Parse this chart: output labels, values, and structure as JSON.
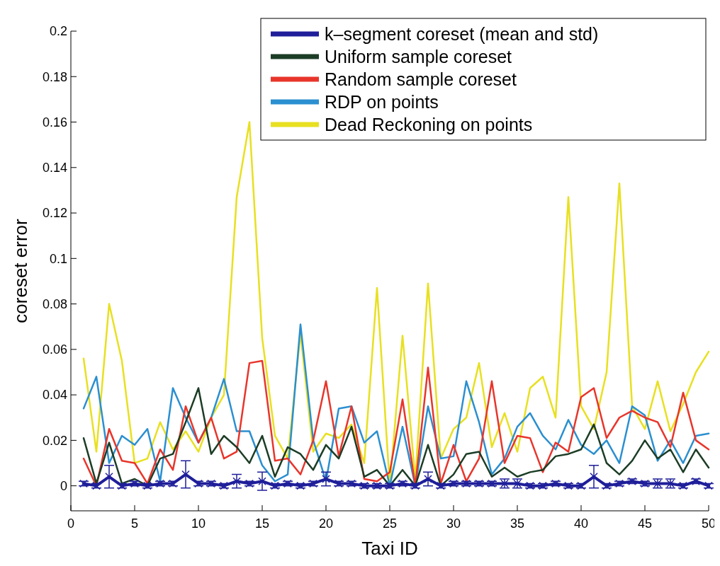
{
  "chart_data": {
    "type": "line",
    "xlabel": "Taxi ID",
    "ylabel": "coreset error",
    "xlim": [
      0,
      50
    ],
    "xticks": [
      0,
      5,
      10,
      15,
      20,
      25,
      30,
      35,
      40,
      45,
      50
    ],
    "ylim": [
      -0.011,
      0.2
    ],
    "yticks": [
      0,
      0.02,
      0.04,
      0.06,
      0.08,
      0.1,
      0.12,
      0.14,
      0.16,
      0.18,
      0.2
    ],
    "legend": "top right",
    "grid": false,
    "x": [
      1,
      2,
      3,
      4,
      5,
      6,
      7,
      8,
      9,
      10,
      11,
      12,
      13,
      14,
      15,
      16,
      17,
      18,
      19,
      20,
      21,
      22,
      23,
      24,
      25,
      26,
      27,
      28,
      29,
      30,
      31,
      32,
      33,
      34,
      35,
      36,
      37,
      38,
      39,
      40,
      41,
      42,
      43,
      44,
      45,
      46,
      47,
      48,
      49,
      50
    ],
    "series": [
      {
        "name": "k–segment coreset (mean and std)",
        "color": "#1f1f9a",
        "marker": "cross",
        "values": [
          0.001,
          0,
          0.004,
          0,
          0.001,
          0,
          0.001,
          0.001,
          0.005,
          0.001,
          0.001,
          0,
          0.002,
          0.001,
          0.002,
          0,
          0.001,
          0,
          0.001,
          0.003,
          0.001,
          0.001,
          0,
          0,
          0,
          0.001,
          0,
          0.003,
          0,
          0.001,
          0.001,
          0.001,
          0.001,
          0.001,
          0.001,
          0,
          0,
          0.001,
          0,
          0,
          0.004,
          0,
          0.001,
          0.002,
          0.001,
          0.001,
          0.001,
          0,
          0.002,
          0
        ],
        "errors": [
          0.001,
          0.001,
          0.005,
          0.001,
          0.001,
          0.001,
          0.001,
          0.001,
          0.006,
          0.001,
          0.001,
          0.001,
          0.003,
          0.001,
          0.004,
          0.001,
          0.001,
          0.001,
          0.001,
          0.003,
          0.001,
          0.001,
          0.001,
          0.001,
          0.001,
          0.001,
          0.001,
          0.003,
          0.001,
          0.001,
          0.001,
          0.001,
          0.001,
          0.002,
          0.002,
          0.001,
          0.001,
          0.001,
          0.001,
          0.001,
          0.005,
          0.001,
          0.001,
          0.001,
          0.001,
          0.002,
          0.002,
          0.001,
          0.001,
          0.001
        ]
      },
      {
        "name": "Uniform sample coreset",
        "color": "#1c3d26",
        "values": [
          0.021,
          0.001,
          0.019,
          0.001,
          0.003,
          0,
          0.012,
          0.014,
          0.028,
          0.043,
          0.014,
          0.022,
          0.017,
          0.01,
          0.022,
          0.004,
          0.017,
          0.014,
          0.007,
          0.018,
          0.012,
          0.026,
          0.004,
          0.007,
          0,
          0.007,
          0,
          0.018,
          0,
          0.005,
          0.014,
          0.015,
          0.004,
          0.008,
          0.004,
          0.006,
          0.007,
          0.013,
          0.014,
          0.016,
          0.027,
          0.01,
          0.005,
          0.011,
          0.02,
          0.012,
          0.016,
          0.006,
          0.016,
          0.008
        ]
      },
      {
        "name": "Random sample coreset",
        "color": "#e8352b",
        "values": [
          0.012,
          0,
          0.025,
          0.011,
          0.01,
          0.001,
          0.016,
          0.007,
          0.035,
          0.019,
          0.03,
          0.012,
          0.015,
          0.054,
          0.055,
          0.011,
          0.012,
          0.005,
          0.02,
          0.046,
          0.013,
          0.035,
          0.003,
          0.002,
          0.006,
          0.038,
          0,
          0.052,
          0.001,
          0.018,
          0.002,
          0.012,
          0.046,
          0.01,
          0.022,
          0.021,
          0.006,
          0.019,
          0.015,
          0.039,
          0.043,
          0.021,
          0.03,
          0.033,
          0.03,
          0.028,
          0.017,
          0.041,
          0.02,
          0.016
        ]
      },
      {
        "name": "RDP on points",
        "color": "#2b8fd0",
        "values": [
          0.034,
          0.048,
          0.01,
          0.022,
          0.018,
          0.025,
          0.002,
          0.043,
          0.03,
          0.019,
          0.03,
          0.047,
          0.024,
          0.024,
          0.009,
          0.002,
          0.005,
          0.071,
          0.02,
          0.002,
          0.034,
          0.035,
          0.019,
          0.024,
          0,
          0.026,
          0,
          0.035,
          0.012,
          0.013,
          0.046,
          0.028,
          0.005,
          0.012,
          0.026,
          0.032,
          0.022,
          0.016,
          0.029,
          0.018,
          0.014,
          0.02,
          0.01,
          0.035,
          0.031,
          0.011,
          0.02,
          0.01,
          0.022,
          0.023
        ]
      },
      {
        "name": "Dead Reckoning on points",
        "color": "#e8e020",
        "values": [
          0.056,
          0.015,
          0.08,
          0.055,
          0.01,
          0.012,
          0.028,
          0.016,
          0.024,
          0.015,
          0.03,
          0.04,
          0.127,
          0.16,
          0.065,
          0.022,
          0.012,
          0.067,
          0.015,
          0.023,
          0.021,
          0.027,
          0.01,
          0.087,
          0,
          0.066,
          0.003,
          0.089,
          0.012,
          0.025,
          0.03,
          0.054,
          0.017,
          0.032,
          0.015,
          0.043,
          0.048,
          0.03,
          0.127,
          0.035,
          0.025,
          0.05,
          0.133,
          0.035,
          0.025,
          0.046,
          0.024,
          0.036,
          0.05,
          0.059
        ]
      }
    ]
  }
}
